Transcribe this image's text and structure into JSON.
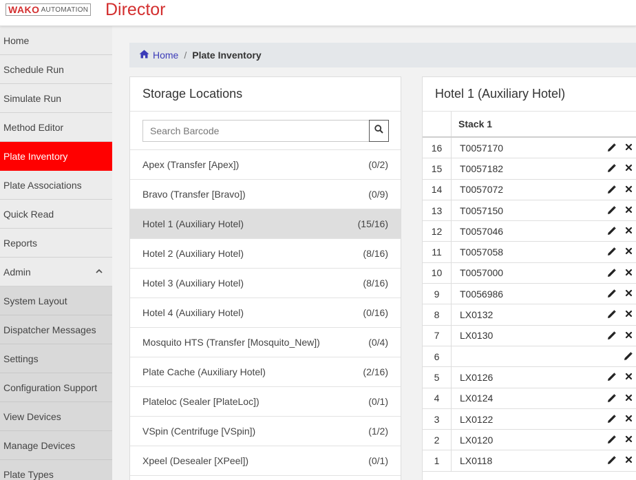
{
  "header": {
    "logo_brand": "WAKO",
    "logo_sub": "AUTOMATION",
    "app_title": "Director",
    "brand_color": "#d32f2f"
  },
  "sidebar": {
    "items": [
      {
        "label": "Home",
        "active": false,
        "sub": false
      },
      {
        "label": "Schedule Run",
        "active": false,
        "sub": false
      },
      {
        "label": "Simulate Run",
        "active": false,
        "sub": false
      },
      {
        "label": "Method Editor",
        "active": false,
        "sub": false
      },
      {
        "label": "Plate Inventory",
        "active": true,
        "sub": false
      },
      {
        "label": "Plate Associations",
        "active": false,
        "sub": false
      },
      {
        "label": "Quick Read",
        "active": false,
        "sub": false
      },
      {
        "label": "Reports",
        "active": false,
        "sub": false
      },
      {
        "label": "Admin",
        "active": false,
        "sub": false,
        "expanded": true
      },
      {
        "label": "System Layout",
        "active": false,
        "sub": true
      },
      {
        "label": "Dispatcher Messages",
        "active": false,
        "sub": true
      },
      {
        "label": "Settings",
        "active": false,
        "sub": true
      },
      {
        "label": "Configuration Support",
        "active": false,
        "sub": true
      },
      {
        "label": "View Devices",
        "active": false,
        "sub": true
      },
      {
        "label": "Manage Devices",
        "active": false,
        "sub": true
      },
      {
        "label": "Plate Types",
        "active": false,
        "sub": true
      }
    ],
    "active_color": "#ff0000"
  },
  "breadcrumb": {
    "home_label": "Home",
    "separator": "/",
    "current": "Plate Inventory"
  },
  "storage": {
    "title": "Storage Locations",
    "search_placeholder": "Search Barcode",
    "search_value": "",
    "locations": [
      {
        "name": "Apex (Transfer [Apex])",
        "count": "(0/2)",
        "selected": false
      },
      {
        "name": "Bravo (Transfer [Bravo])",
        "count": "(0/9)",
        "selected": false
      },
      {
        "name": "Hotel 1 (Auxiliary Hotel)",
        "count": "(15/16)",
        "selected": true
      },
      {
        "name": "Hotel 2 (Auxiliary Hotel)",
        "count": "(8/16)",
        "selected": false
      },
      {
        "name": "Hotel 3 (Auxiliary Hotel)",
        "count": "(8/16)",
        "selected": false
      },
      {
        "name": "Hotel 4 (Auxiliary Hotel)",
        "count": "(0/16)",
        "selected": false
      },
      {
        "name": "Mosquito HTS (Transfer [Mosquito_New])",
        "count": "(0/4)",
        "selected": false
      },
      {
        "name": "Plate Cache (Auxiliary Hotel)",
        "count": "(2/16)",
        "selected": false
      },
      {
        "name": "Plateloc (Sealer [PlateLoc])",
        "count": "(0/1)",
        "selected": false
      },
      {
        "name": "VSpin (Centrifuge [VSpin])",
        "count": "(1/2)",
        "selected": false
      },
      {
        "name": "Xpeel (Desealer [XPeel])",
        "count": "(0/1)",
        "selected": false
      }
    ]
  },
  "hotel": {
    "title": "Hotel 1 (Auxiliary Hotel)",
    "stack_header": "Stack 1",
    "slots": [
      {
        "slot": "16",
        "barcode": "T0057170"
      },
      {
        "slot": "15",
        "barcode": "T0057182"
      },
      {
        "slot": "14",
        "barcode": "T0057072"
      },
      {
        "slot": "13",
        "barcode": "T0057150"
      },
      {
        "slot": "12",
        "barcode": "T0057046"
      },
      {
        "slot": "11",
        "barcode": "T0057058"
      },
      {
        "slot": "10",
        "barcode": "T0057000"
      },
      {
        "slot": "9",
        "barcode": "T0056986"
      },
      {
        "slot": "8",
        "barcode": "LX0132"
      },
      {
        "slot": "7",
        "barcode": "LX0130"
      },
      {
        "slot": "6",
        "barcode": ""
      },
      {
        "slot": "5",
        "barcode": "LX0126"
      },
      {
        "slot": "4",
        "barcode": "LX0124"
      },
      {
        "slot": "3",
        "barcode": "LX0122"
      },
      {
        "slot": "2",
        "barcode": "LX0120"
      },
      {
        "slot": "1",
        "barcode": "LX0118"
      }
    ]
  },
  "icons": {
    "home": "home-icon",
    "search": "search-icon",
    "edit": "pencil-icon",
    "delete": "close-icon",
    "collapse": "chevron-up-icon"
  }
}
